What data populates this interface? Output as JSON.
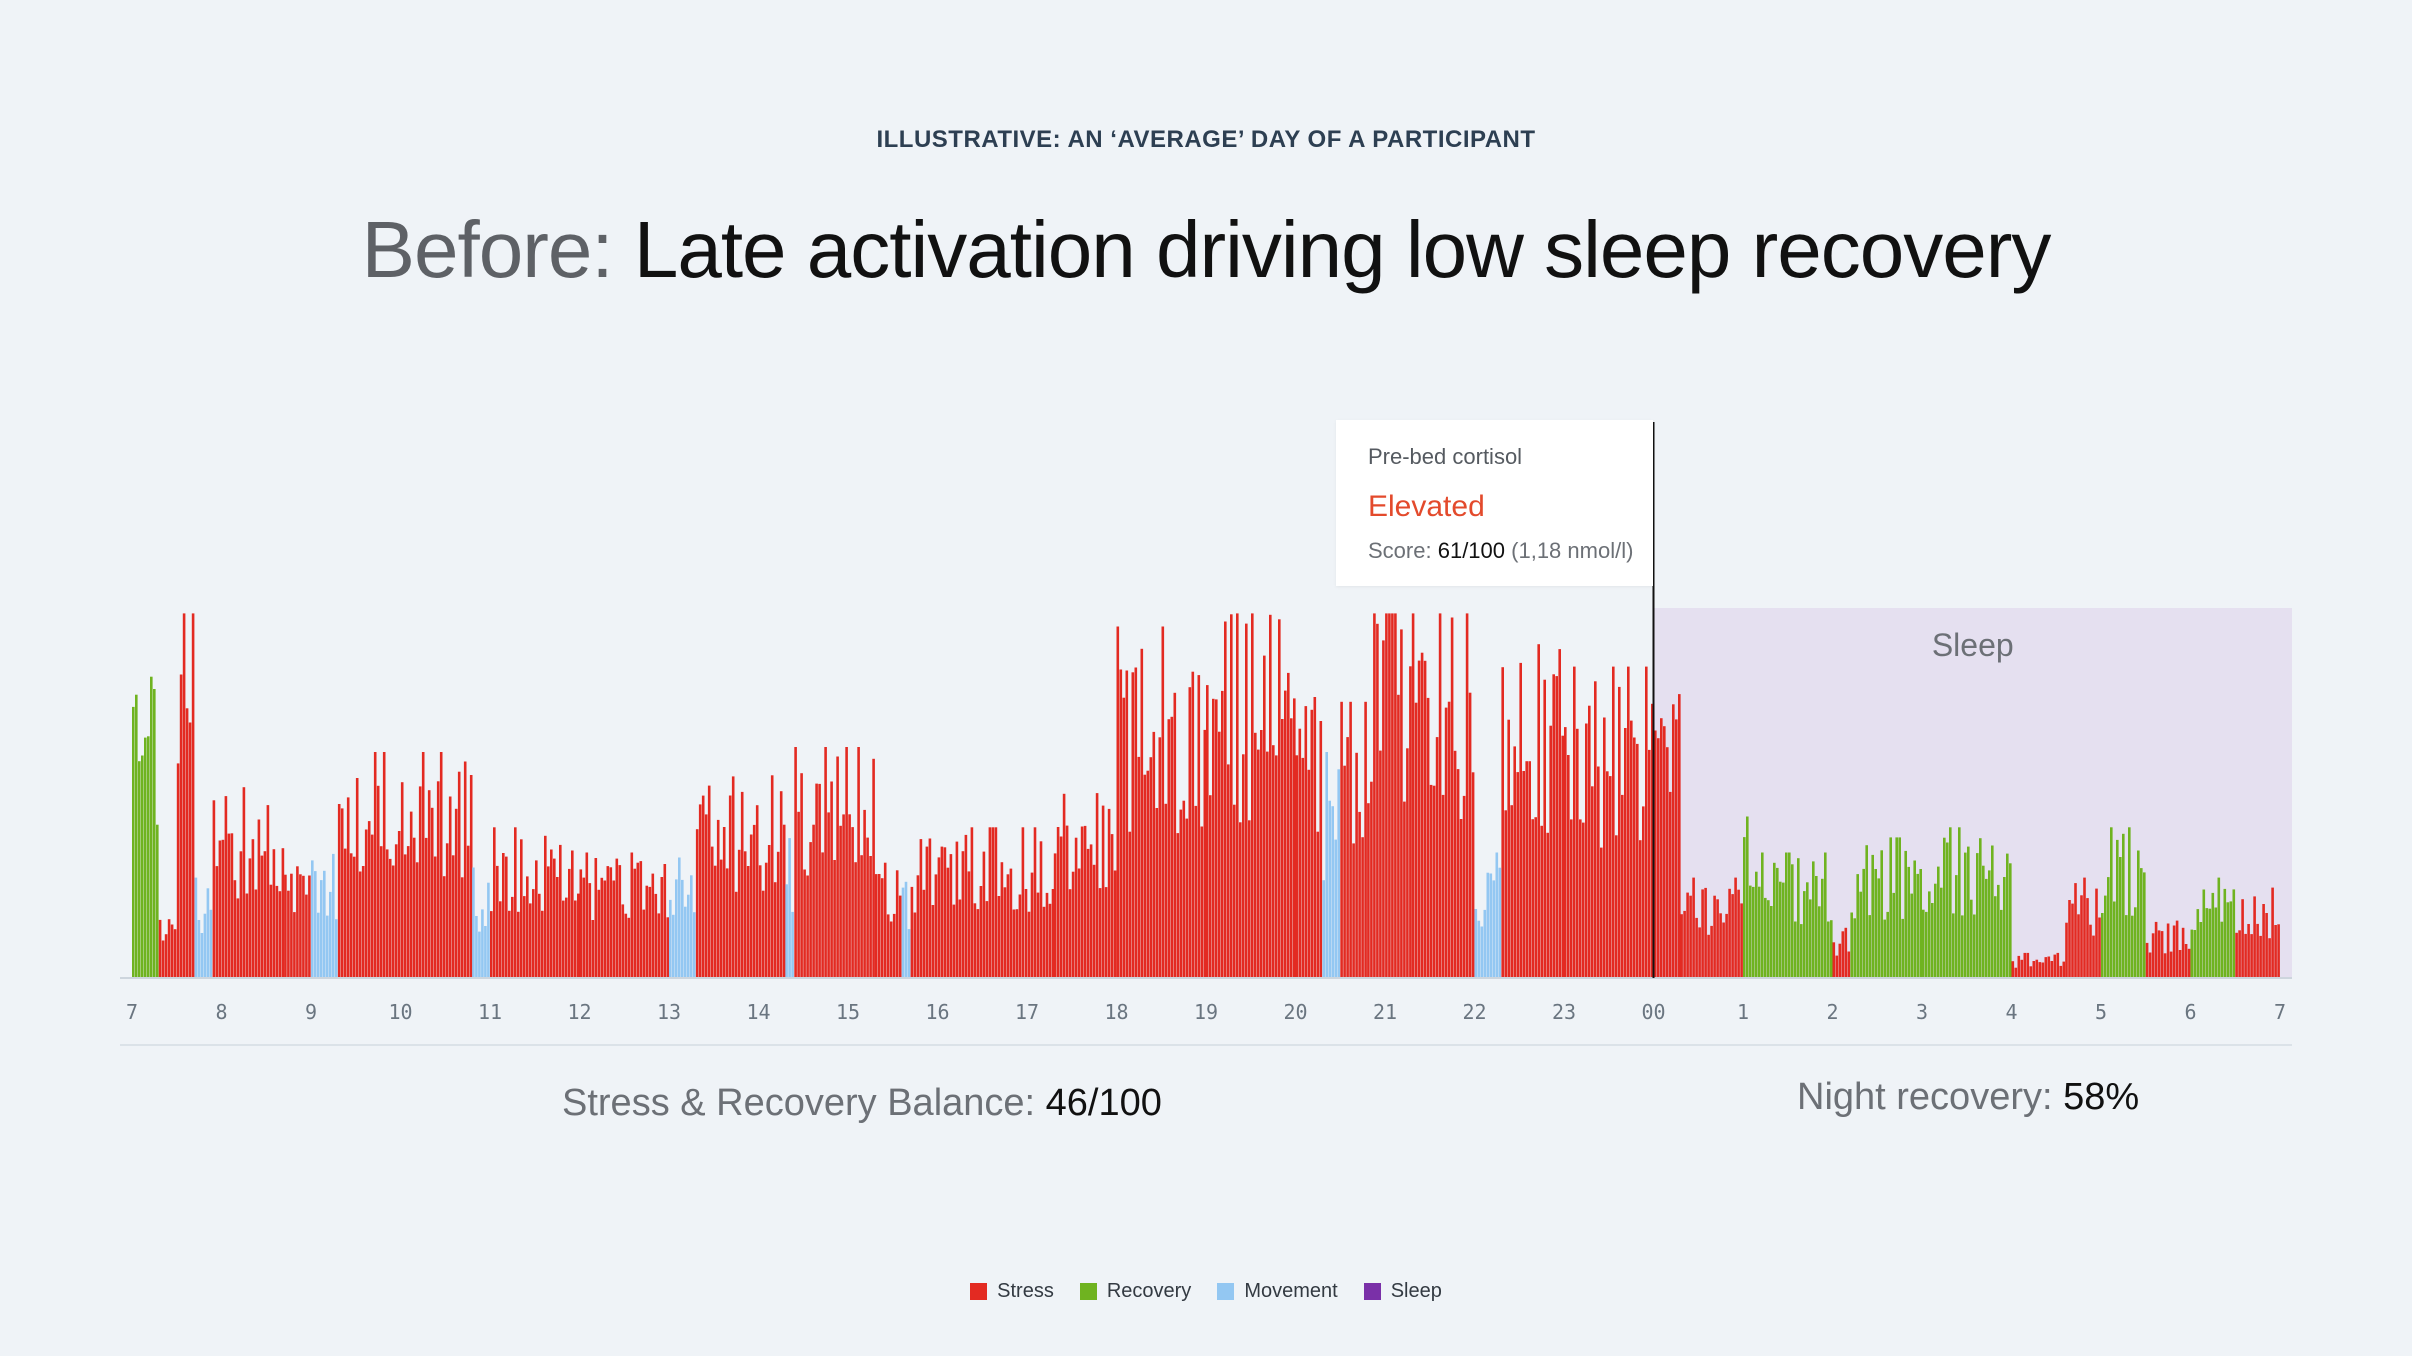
{
  "kicker": "ILLUSTRATIVE: AN ‘AVERAGE’ DAY OF A PARTICIPANT",
  "headline": {
    "prefix": "Before:",
    "main": "Late activation driving low sleep recovery"
  },
  "tooltip": {
    "label": "Pre-bed cortisol",
    "status": "Elevated",
    "score_prefix": "Score:",
    "score_value": "61/100",
    "score_unit": "(1,18 nmol/l)"
  },
  "metrics": {
    "balance_label": "Stress & Recovery Balance:",
    "balance_value": "46/100",
    "night_label": "Night recovery:",
    "night_value": "58%"
  },
  "colors": {
    "stress": "#e32a22",
    "recovery": "#6fb320",
    "movement": "#93c7f2",
    "sleep": "#7a30a8",
    "sleep_band": "#e5e0f0",
    "status": "#e34a2c"
  },
  "legend": [
    {
      "name": "Stress",
      "color": "#e32a22"
    },
    {
      "name": "Recovery",
      "color": "#6fb320"
    },
    {
      "name": "Movement",
      "color": "#93c7f2"
    },
    {
      "name": "Sleep",
      "color": "#7a30a8"
    }
  ],
  "chart_data": {
    "type": "bar",
    "x_ticks": [
      "7",
      "8",
      "9",
      "10",
      "11",
      "12",
      "13",
      "14",
      "15",
      "16",
      "17",
      "18",
      "19",
      "20",
      "21",
      "22",
      "23",
      "00",
      "1",
      "2",
      "3",
      "4",
      "5",
      "6",
      "7"
    ],
    "x_range_hours": [
      0,
      24
    ],
    "ylim": [
      0,
      100
    ],
    "sleep_region": {
      "label": "Sleep",
      "start_hour": 17,
      "end_hour": 24.25
    },
    "marker_hour": 17,
    "segments": [
      {
        "start": 0.0,
        "end": 0.3,
        "type": "recovery",
        "level": 60
      },
      {
        "start": 0.3,
        "end": 0.5,
        "type": "stress",
        "level": 15
      },
      {
        "start": 0.5,
        "end": 0.7,
        "type": "stress",
        "level": 90
      },
      {
        "start": 0.7,
        "end": 0.9,
        "type": "movement",
        "level": 20
      },
      {
        "start": 0.9,
        "end": 1.7,
        "type": "stress",
        "level": 38
      },
      {
        "start": 1.7,
        "end": 2.0,
        "type": "stress",
        "level": 24
      },
      {
        "start": 2.0,
        "end": 2.3,
        "type": "movement",
        "level": 28
      },
      {
        "start": 2.3,
        "end": 3.8,
        "type": "stress",
        "level": 45
      },
      {
        "start": 3.8,
        "end": 4.0,
        "type": "movement",
        "level": 22
      },
      {
        "start": 4.0,
        "end": 5.0,
        "type": "stress",
        "level": 30
      },
      {
        "start": 5.0,
        "end": 6.0,
        "type": "stress",
        "level": 25
      },
      {
        "start": 6.0,
        "end": 6.3,
        "type": "movement",
        "level": 24
      },
      {
        "start": 6.3,
        "end": 7.3,
        "type": "stress",
        "level": 42
      },
      {
        "start": 7.3,
        "end": 7.4,
        "type": "movement",
        "level": 30
      },
      {
        "start": 7.4,
        "end": 8.3,
        "type": "stress",
        "level": 46
      },
      {
        "start": 8.3,
        "end": 8.6,
        "type": "stress",
        "level": 25
      },
      {
        "start": 8.6,
        "end": 8.7,
        "type": "movement",
        "level": 20
      },
      {
        "start": 8.7,
        "end": 10.3,
        "type": "stress",
        "level": 30
      },
      {
        "start": 10.3,
        "end": 11.0,
        "type": "stress",
        "level": 40
      },
      {
        "start": 11.0,
        "end": 12.0,
        "type": "stress",
        "level": 70
      },
      {
        "start": 12.0,
        "end": 13.0,
        "type": "stress",
        "level": 76
      },
      {
        "start": 13.0,
        "end": 13.3,
        "type": "stress",
        "level": 62
      },
      {
        "start": 13.3,
        "end": 13.5,
        "type": "movement",
        "level": 45
      },
      {
        "start": 13.5,
        "end": 13.8,
        "type": "stress",
        "level": 55
      },
      {
        "start": 13.8,
        "end": 14.3,
        "type": "stress",
        "level": 84
      },
      {
        "start": 14.3,
        "end": 15.0,
        "type": "stress",
        "level": 76
      },
      {
        "start": 15.0,
        "end": 15.3,
        "type": "movement",
        "level": 25
      },
      {
        "start": 15.3,
        "end": 16.0,
        "type": "stress",
        "level": 70
      },
      {
        "start": 16.0,
        "end": 17.3,
        "type": "stress",
        "level": 62
      },
      {
        "start": 17.3,
        "end": 18.0,
        "type": "stress",
        "level": 20
      },
      {
        "start": 18.0,
        "end": 18.1,
        "type": "recovery",
        "level": 40
      },
      {
        "start": 18.1,
        "end": 19.0,
        "type": "recovery",
        "level": 25
      },
      {
        "start": 19.0,
        "end": 19.2,
        "type": "stress",
        "level": 10
      },
      {
        "start": 19.2,
        "end": 20.0,
        "type": "recovery",
        "level": 28
      },
      {
        "start": 20.0,
        "end": 21.0,
        "type": "recovery",
        "level": 30
      },
      {
        "start": 21.0,
        "end": 21.6,
        "type": "stress",
        "level": 5
      },
      {
        "start": 21.6,
        "end": 22.0,
        "type": "stress",
        "level": 20
      },
      {
        "start": 22.0,
        "end": 22.5,
        "type": "recovery",
        "level": 30
      },
      {
        "start": 22.5,
        "end": 23.0,
        "type": "stress",
        "level": 12
      },
      {
        "start": 23.0,
        "end": 23.5,
        "type": "recovery",
        "level": 20
      },
      {
        "start": 23.5,
        "end": 24.0,
        "type": "stress",
        "level": 18
      }
    ]
  }
}
